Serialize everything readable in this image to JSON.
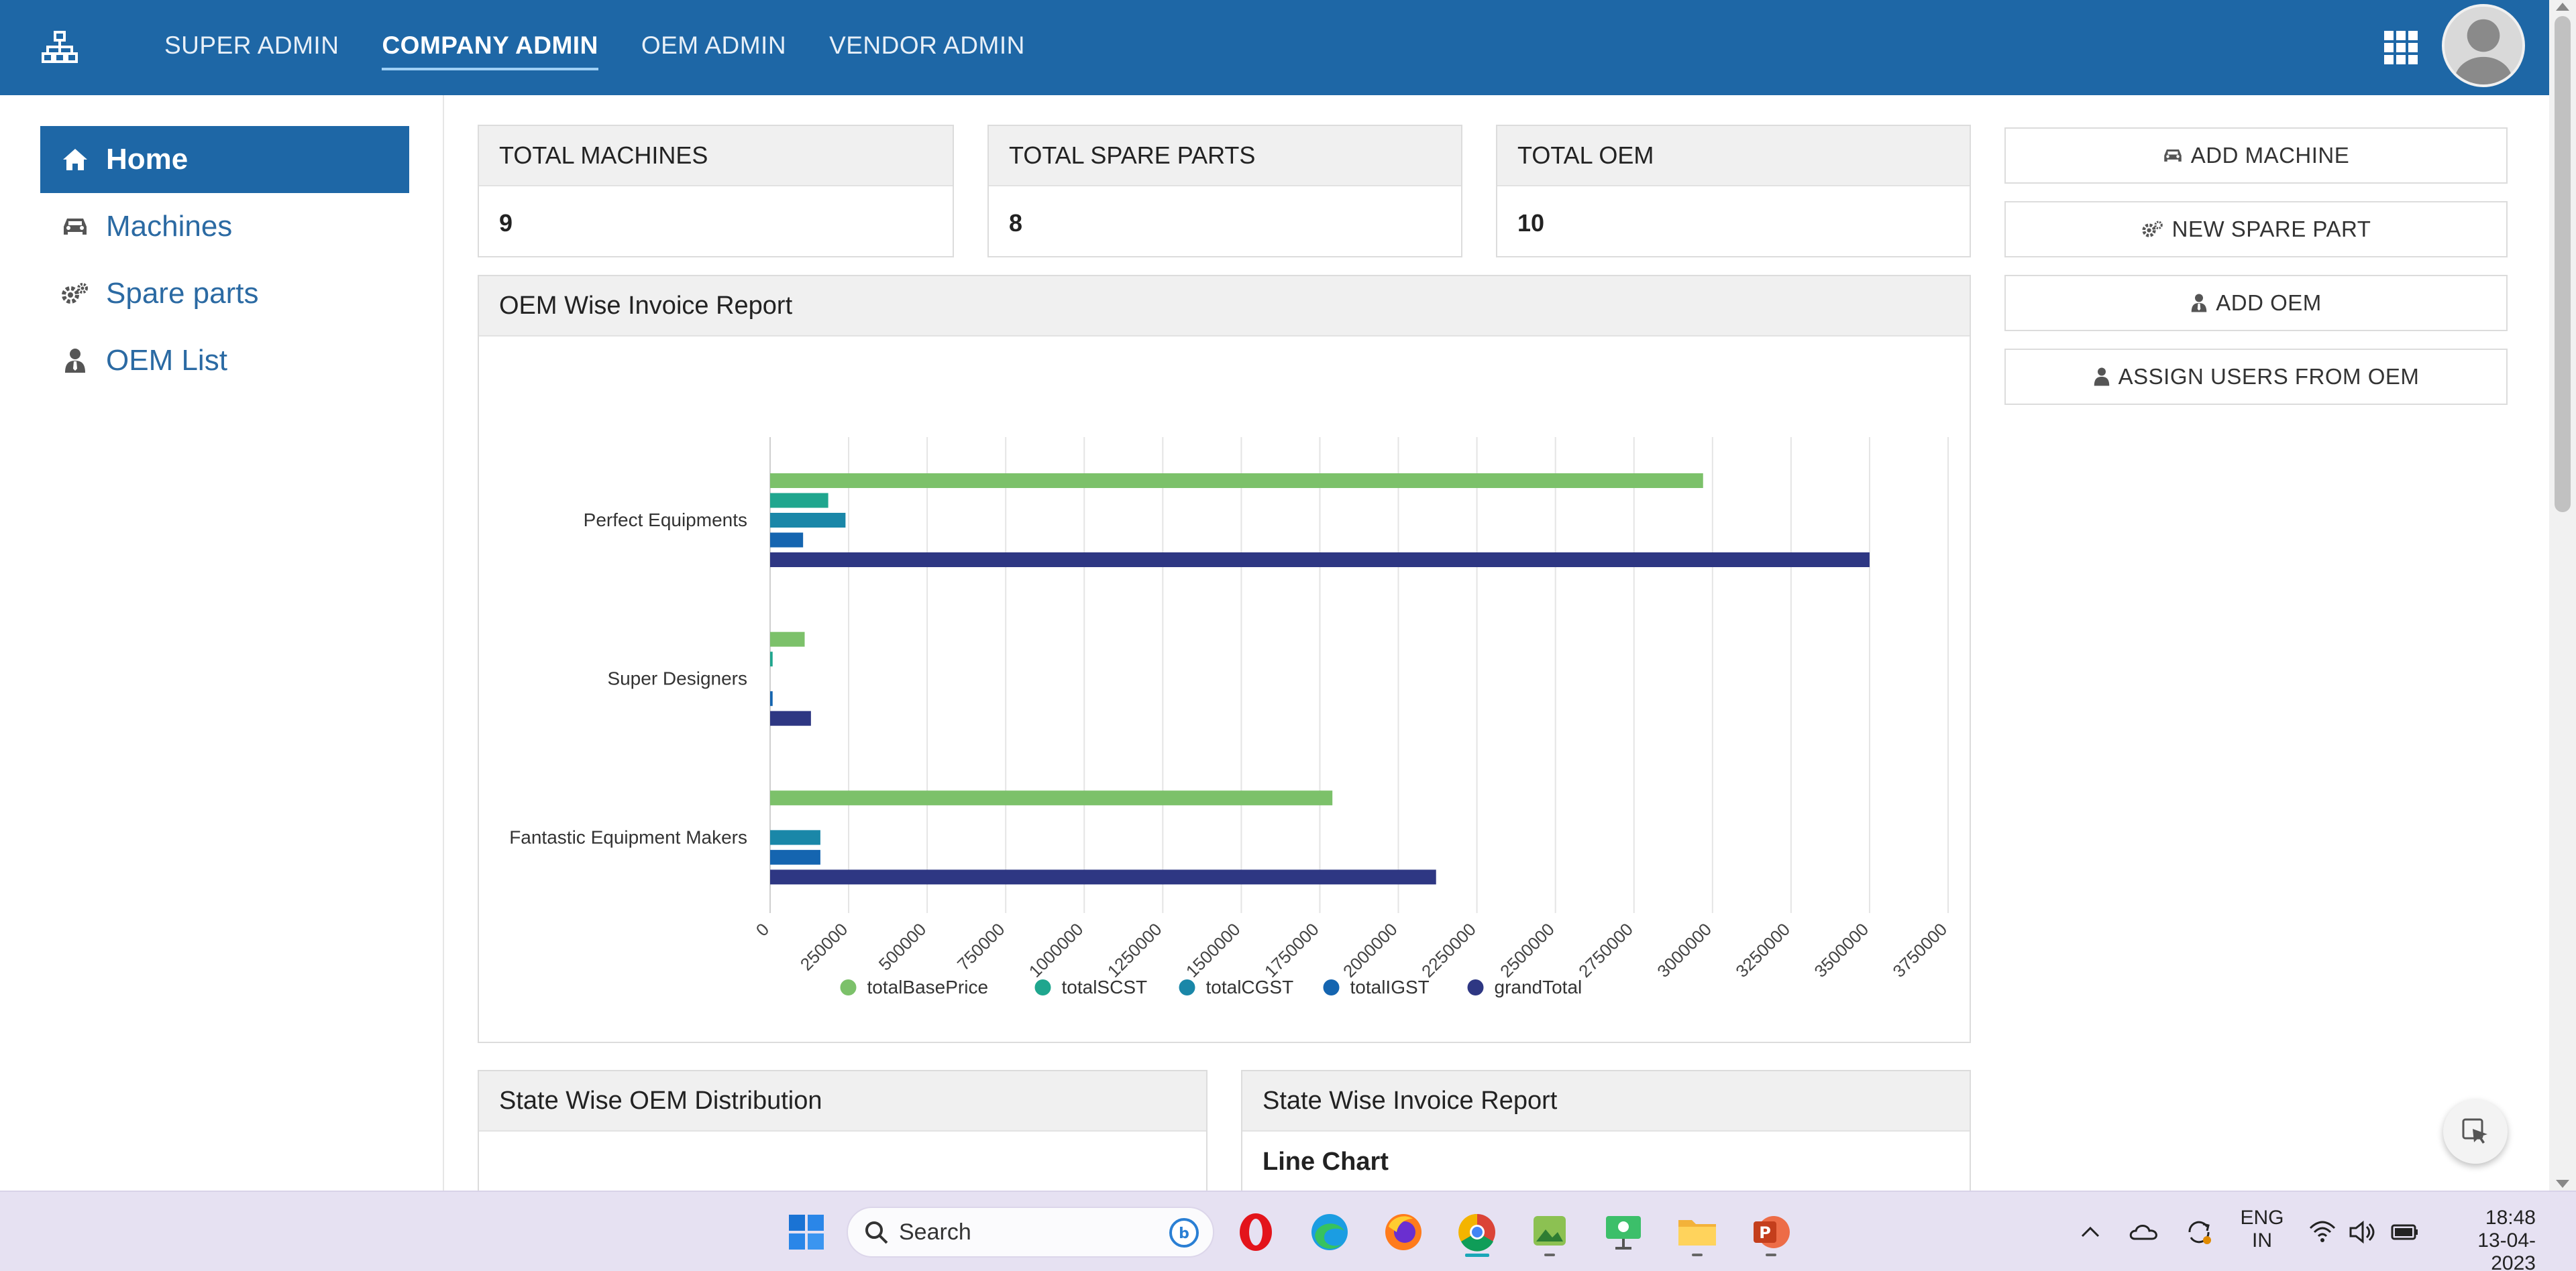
{
  "nav": {
    "items": [
      {
        "label": "SUPER ADMIN"
      },
      {
        "label": "COMPANY ADMIN",
        "active": true
      },
      {
        "label": "OEM ADMIN"
      },
      {
        "label": "VENDOR ADMIN"
      }
    ]
  },
  "sidebar": {
    "items": [
      {
        "label": "Home",
        "icon": "home-icon",
        "active": true
      },
      {
        "label": "Machines",
        "icon": "car-icon"
      },
      {
        "label": "Spare parts",
        "icon": "gears-icon"
      },
      {
        "label": "OEM List",
        "icon": "user-tie-icon"
      }
    ]
  },
  "stats": [
    {
      "title": "TOTAL MACHINES",
      "value": "9"
    },
    {
      "title": "TOTAL SPARE PARTS",
      "value": "8"
    },
    {
      "title": "TOTAL OEM",
      "value": "10"
    }
  ],
  "actions": [
    {
      "label": "ADD MACHINE",
      "icon": "car-icon"
    },
    {
      "label": "NEW SPARE PART",
      "icon": "gears-icon"
    },
    {
      "label": "ADD OEM",
      "icon": "user-tie-icon"
    },
    {
      "label": "ASSIGN USERS FROM OEM",
      "icon": "user-icon"
    }
  ],
  "panels": {
    "oem_report": "OEM Wise Invoice Report",
    "state_distribution": "State Wise OEM Distribution",
    "state_invoice": "State Wise Invoice Report",
    "state_invoice_sub": "Line Chart"
  },
  "chart_data": {
    "type": "bar",
    "orientation": "horizontal",
    "title": "",
    "xlabel": "",
    "ylabel": "",
    "categories": [
      "Perfect Equipments",
      "Super Designers",
      "Fantastic Equipment Makers"
    ],
    "xlim": [
      0,
      3750000
    ],
    "xticks": [
      "0",
      "250000",
      "500000",
      "750000",
      "1000000",
      "1250000",
      "1500000",
      "1750000",
      "2000000",
      "2250000",
      "2500000",
      "2750000",
      "3000000",
      "3250000",
      "3500000",
      "3750000"
    ],
    "grid": true,
    "legend_position": "bottom",
    "series": [
      {
        "name": "totalBasePrice",
        "color": "#7cc16a",
        "values": [
          2970000,
          110000,
          1790000
        ]
      },
      {
        "name": "totalSCST",
        "color": "#1fa68e",
        "values": [
          185000,
          8000,
          0
        ]
      },
      {
        "name": "totalCGST",
        "color": "#1a87a8",
        "values": [
          240000,
          0,
          160000
        ]
      },
      {
        "name": "totalIGST",
        "color": "#1565b0",
        "values": [
          105000,
          8000,
          160000
        ]
      },
      {
        "name": "grandTotal",
        "color": "#2e3783",
        "values": [
          3500000,
          130000,
          2120000
        ]
      }
    ]
  },
  "taskbar": {
    "search_placeholder": "Search",
    "lang_top": "ENG",
    "lang_bottom": "IN",
    "time": "18:48",
    "date": "13-04-2023"
  },
  "colors": {
    "primary": "#1e67a6",
    "taskbar": "#e6e1f2"
  }
}
